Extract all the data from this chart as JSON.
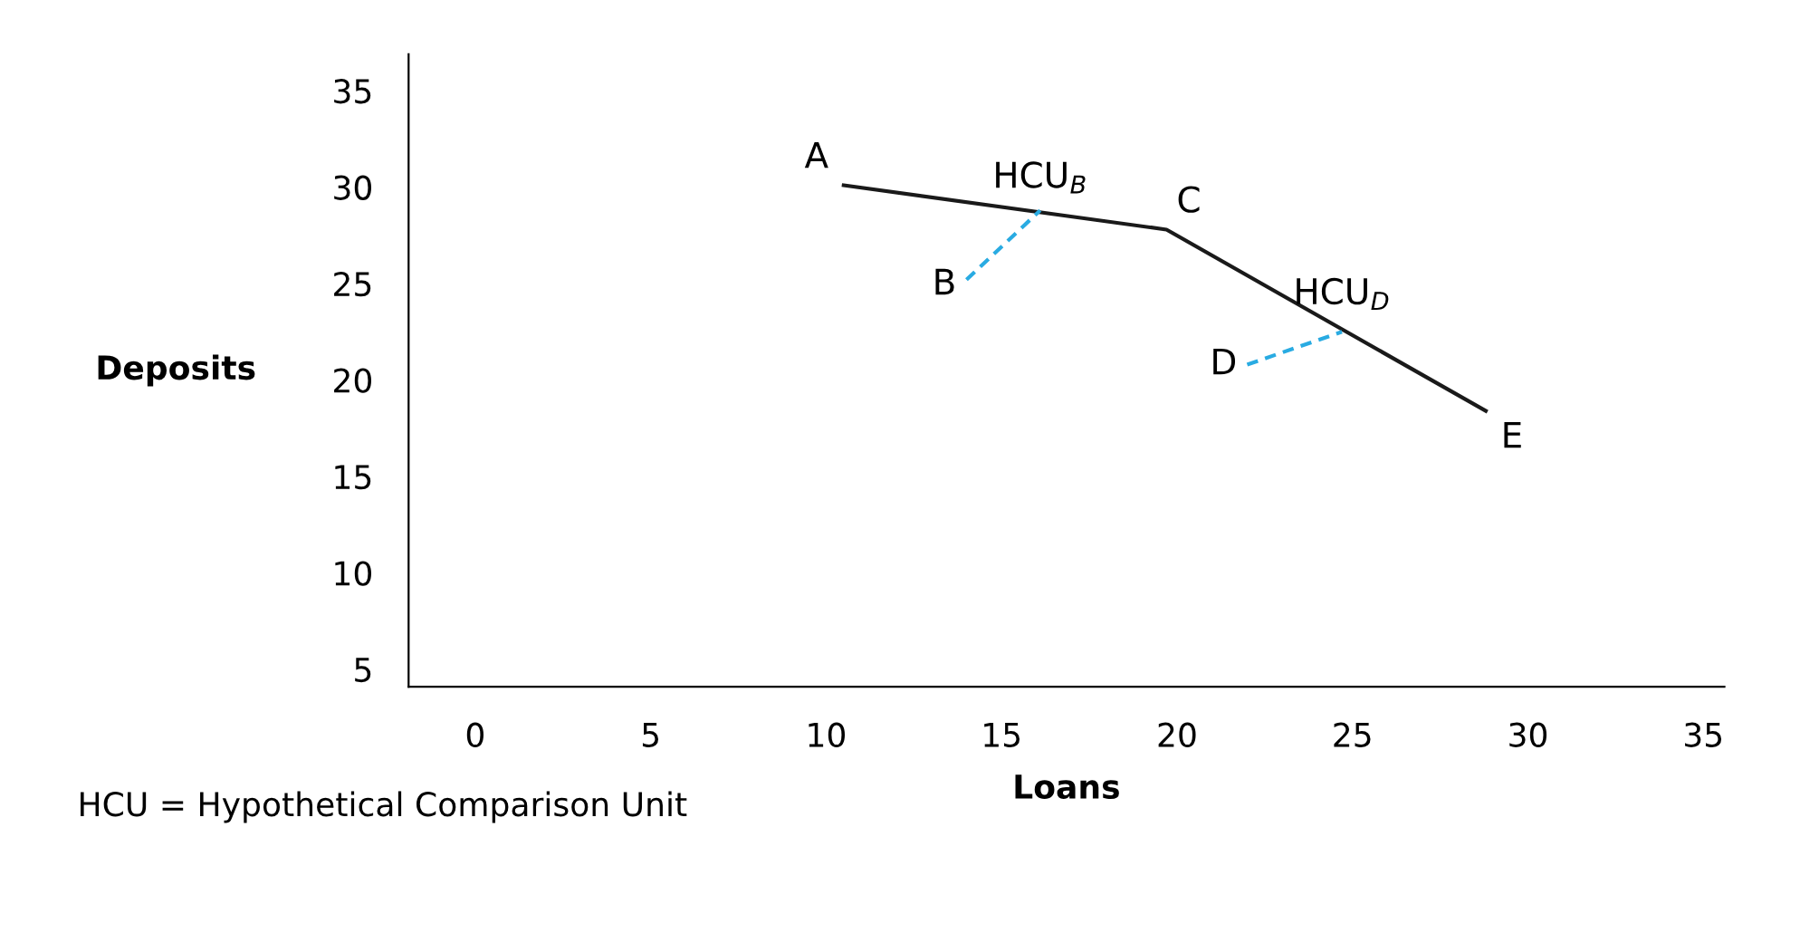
{
  "chart_data": {
    "type": "line",
    "xlabel": "Loans",
    "ylabel": "Deposits",
    "series": [
      {
        "color": "#1a1a1a",
        "x": [
          10.5,
          19.7,
          28.8
        ],
        "values": [
          30.1,
          27.8,
          18.4
        ],
        "line_style": "solid"
      },
      {
        "color": "#29abe2",
        "x": [
          14.0,
          16.1
        ],
        "values": [
          25.2,
          28.8
        ],
        "line_style": "dashed"
      },
      {
        "color": "#29abe2",
        "x": [
          22.0,
          24.7
        ],
        "values": [
          20.8,
          22.5
        ],
        "line_style": "dashed"
      }
    ],
    "xlim": [
      -1.9,
      35.6
    ],
    "ylim": [
      4.1,
      36.9
    ],
    "xticks": [
      0,
      5,
      10,
      15,
      20,
      25,
      30,
      35
    ],
    "yticks": [
      5,
      10,
      15,
      20,
      25,
      30,
      35
    ],
    "grid": false,
    "marker": "none",
    "annotations": [
      {
        "text": "A",
        "x": 10.5,
        "y": 30.1
      },
      {
        "text": "HCU$_{B}$",
        "x": 16.1,
        "y": 28.8
      },
      {
        "text": "B",
        "x": 14.0,
        "y": 25.2
      },
      {
        "text": "C",
        "x": 19.7,
        "y": 27.8
      },
      {
        "text": "HCU$_{D}$",
        "x": 24.7,
        "y": 22.5
      },
      {
        "text": "D",
        "x": 22.0,
        "y": 20.8
      },
      {
        "text": "E",
        "x": 28.8,
        "y": 18.4
      },
      "HCU = Hypothetical Comparison Unit"
    ]
  }
}
